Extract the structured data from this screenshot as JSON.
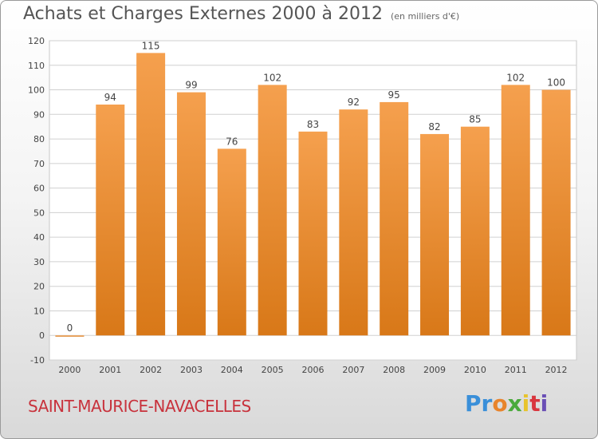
{
  "header": {
    "title": "Achats et Charges Externes 2000 à 2012",
    "unit": "(en milliers d'€)"
  },
  "footer": {
    "commune": "SAINT-MAURICE-NAVACELLES",
    "logo_letters": [
      "P",
      "r",
      "o",
      "x",
      "i",
      "t",
      "i"
    ],
    "logo_colors": [
      "#3a8fd9",
      "#3a8fd9",
      "#e8842c",
      "#4aaa3c",
      "#e8c32c",
      "#d9363e",
      "#6a4fb5"
    ]
  },
  "colors": {
    "bar_top": "#f5a04e",
    "bar_bottom": "#d87818",
    "grid": "#d0d0d0",
    "axis_text": "#444444"
  },
  "chart_data": {
    "type": "bar",
    "categories": [
      "2000",
      "2001",
      "2002",
      "2003",
      "2004",
      "2005",
      "2006",
      "2007",
      "2008",
      "2009",
      "2010",
      "2011",
      "2012"
    ],
    "values": [
      0,
      94,
      115,
      99,
      76,
      102,
      83,
      92,
      95,
      82,
      85,
      102,
      100
    ],
    "ylim": [
      -10,
      120
    ],
    "yticks": [
      -10,
      0,
      10,
      20,
      30,
      40,
      50,
      60,
      70,
      80,
      90,
      100,
      110,
      120
    ],
    "grid": true
  }
}
